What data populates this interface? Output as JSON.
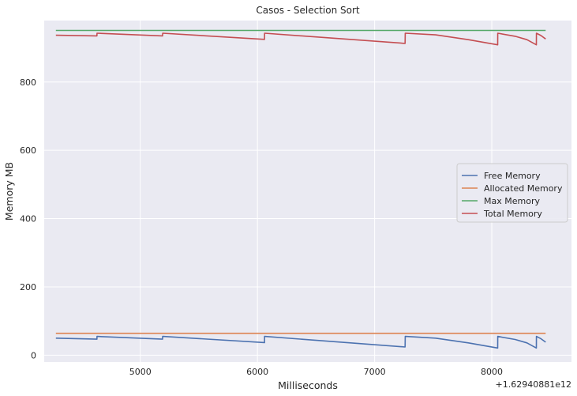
{
  "chart_data": {
    "type": "line",
    "title": "Casos - Selection Sort",
    "xlabel": "Milliseconds",
    "ylabel": "Memory MB",
    "x_offset_label": "+1.62940881e12",
    "xlim": [
      4180,
      8680
    ],
    "ylim": [
      -20,
      980
    ],
    "x_ticks": [
      5000,
      6000,
      7000,
      8000
    ],
    "y_ticks": [
      0,
      200,
      400,
      600,
      800
    ],
    "grid": true,
    "legend_position": "center-right",
    "series": [
      {
        "name": "Free Memory",
        "color": "#4c72b0",
        "points": [
          [
            4280,
            50
          ],
          [
            4630,
            47
          ],
          [
            4631,
            55
          ],
          [
            5190,
            47
          ],
          [
            5191,
            55
          ],
          [
            6060,
            37
          ],
          [
            6061,
            55
          ],
          [
            7260,
            24
          ],
          [
            7261,
            55
          ],
          [
            7520,
            50
          ],
          [
            7800,
            36
          ],
          [
            8050,
            21
          ],
          [
            8051,
            55
          ],
          [
            8200,
            46
          ],
          [
            8300,
            36
          ],
          [
            8380,
            21
          ],
          [
            8381,
            55
          ],
          [
            8420,
            48
          ],
          [
            8460,
            38
          ]
        ]
      },
      {
        "name": "Allocated Memory",
        "color": "#dd8452",
        "points": [
          [
            4280,
            64
          ],
          [
            8460,
            64
          ]
        ]
      },
      {
        "name": "Max Memory",
        "color": "#55a868",
        "points": [
          [
            4280,
            951
          ],
          [
            8460,
            951
          ]
        ]
      },
      {
        "name": "Total Memory",
        "color": "#c44e52",
        "points": [
          [
            4280,
            937
          ],
          [
            4630,
            935
          ],
          [
            4631,
            943
          ],
          [
            5190,
            935
          ],
          [
            5191,
            943
          ],
          [
            6060,
            925
          ],
          [
            6061,
            943
          ],
          [
            7260,
            913
          ],
          [
            7261,
            943
          ],
          [
            7520,
            938
          ],
          [
            7800,
            924
          ],
          [
            8050,
            909
          ],
          [
            8051,
            943
          ],
          [
            8200,
            934
          ],
          [
            8300,
            924
          ],
          [
            8380,
            909
          ],
          [
            8381,
            943
          ],
          [
            8420,
            936
          ],
          [
            8460,
            926
          ]
        ]
      }
    ]
  }
}
